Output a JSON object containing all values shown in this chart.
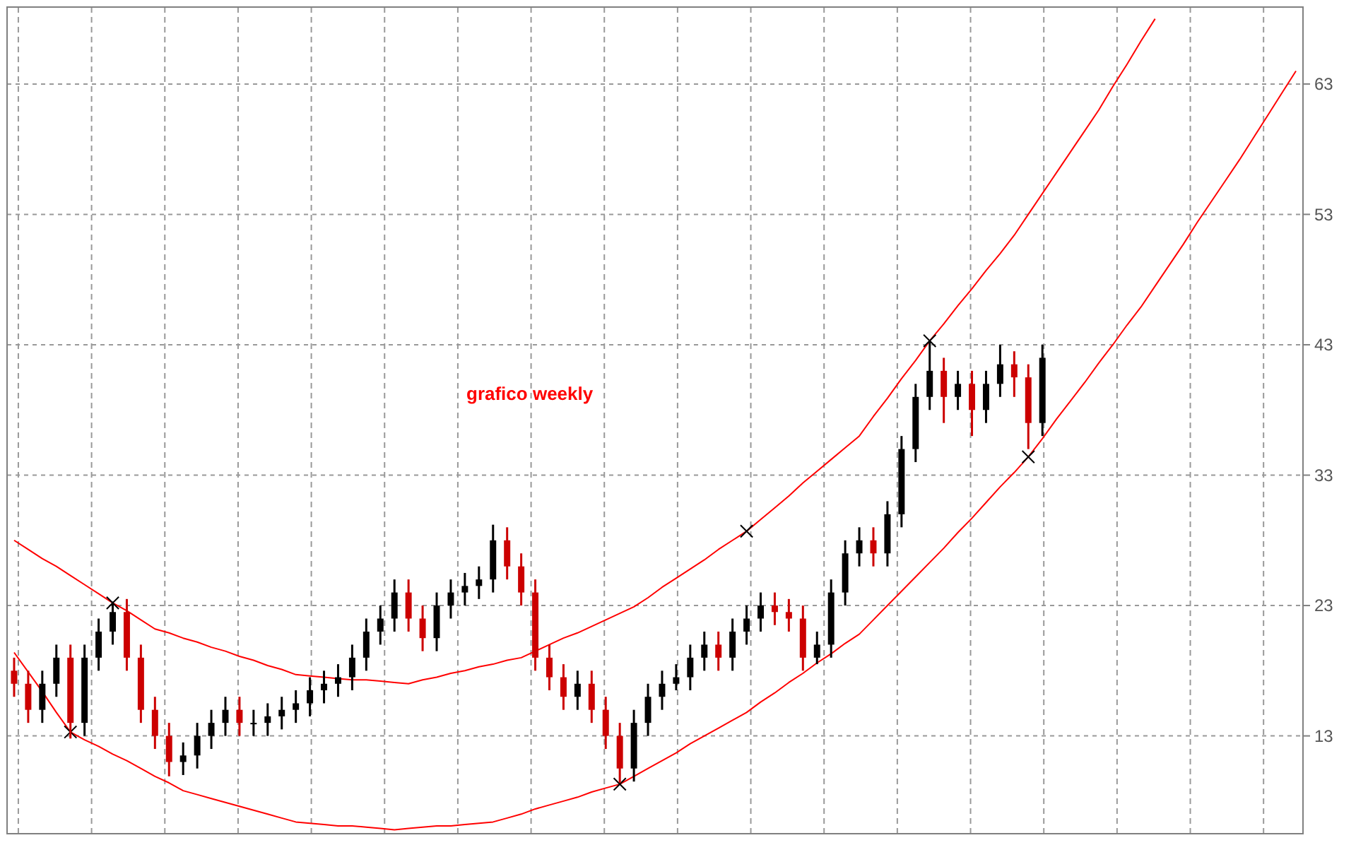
{
  "chart_data": {
    "type": "candlestick",
    "annotations": [
      "grafico weekly"
    ],
    "categories": [
      null,
      null,
      null,
      null,
      null,
      null,
      null,
      null,
      null,
      null,
      null,
      null,
      null,
      null,
      null,
      null,
      null,
      null,
      null,
      null,
      null,
      null,
      null,
      null,
      null,
      null,
      null,
      null,
      null,
      null,
      null,
      null,
      null,
      null,
      null,
      null,
      null,
      null,
      null,
      null,
      null,
      null,
      null,
      null,
      null,
      null,
      null,
      null,
      null,
      null,
      null,
      null,
      null,
      null,
      null,
      null,
      null,
      null,
      null,
      null,
      null,
      null,
      null,
      null,
      null,
      null,
      null,
      null,
      null,
      null,
      null,
      null,
      null,
      null,
      null,
      null,
      null,
      null,
      null,
      null,
      null,
      null,
      null,
      null,
      null,
      null,
      null,
      null,
      null,
      null,
      null,
      null
    ],
    "ohlc": [
      [
        18,
        19,
        16,
        17
      ],
      [
        17,
        18,
        14,
        15
      ],
      [
        15,
        18,
        14,
        17
      ],
      [
        17,
        20,
        16,
        19
      ],
      [
        19,
        20,
        12.8,
        14
      ],
      [
        14,
        20,
        13,
        19
      ],
      [
        19,
        22,
        18,
        21
      ],
      [
        21,
        23.3,
        20,
        22.5
      ],
      [
        22.5,
        23.5,
        18,
        19
      ],
      [
        19,
        20,
        14,
        15
      ],
      [
        15,
        16,
        12,
        13
      ],
      [
        13,
        14,
        9.9,
        11
      ],
      [
        11,
        12.5,
        10,
        11.5
      ],
      [
        11.5,
        14,
        10.5,
        13
      ],
      [
        13,
        15,
        12,
        14
      ],
      [
        14,
        16,
        13,
        15
      ],
      [
        15,
        16,
        13,
        14
      ],
      [
        14,
        15,
        13,
        14
      ],
      [
        14,
        15.5,
        13,
        14.5
      ],
      [
        14.5,
        16,
        13.5,
        15
      ],
      [
        15,
        16.5,
        14,
        15.5
      ],
      [
        15.5,
        17.5,
        14.5,
        16.5
      ],
      [
        16.5,
        18,
        15.5,
        17
      ],
      [
        17,
        18.5,
        16,
        17.5
      ],
      [
        17.5,
        20,
        16.5,
        19
      ],
      [
        19,
        22,
        18,
        21
      ],
      [
        21,
        23,
        20,
        22
      ],
      [
        22,
        25,
        21,
        24
      ],
      [
        24,
        25,
        21,
        22
      ],
      [
        22,
        23,
        19.5,
        20.5
      ],
      [
        20.5,
        24,
        19.5,
        23
      ],
      [
        23,
        25,
        22,
        24
      ],
      [
        24,
        25.5,
        23,
        24.5
      ],
      [
        24.5,
        26,
        23.5,
        25
      ],
      [
        25,
        29.2,
        24,
        28
      ],
      [
        28,
        29,
        25,
        26
      ],
      [
        26,
        27,
        23,
        24
      ],
      [
        24,
        25,
        18,
        19
      ],
      [
        19,
        20,
        16.5,
        17.5
      ],
      [
        17.5,
        18.5,
        15,
        16
      ],
      [
        16,
        18,
        15,
        17
      ],
      [
        17,
        18,
        14,
        15
      ],
      [
        15,
        16,
        12,
        13
      ],
      [
        13,
        14,
        9.4,
        10.5
      ],
      [
        10.5,
        15,
        9.5,
        14
      ],
      [
        14,
        17,
        13,
        16
      ],
      [
        16,
        18,
        15,
        17
      ],
      [
        17,
        18.5,
        16.5,
        17.5
      ],
      [
        17.5,
        20,
        16.5,
        19
      ],
      [
        19,
        21,
        18,
        20
      ],
      [
        20,
        21,
        18,
        19
      ],
      [
        19,
        22,
        18,
        21
      ],
      [
        21,
        23,
        20,
        22
      ],
      [
        22,
        24,
        21,
        23
      ],
      [
        23,
        24,
        21.5,
        22.5
      ],
      [
        22.5,
        23.5,
        21,
        22
      ],
      [
        22,
        23,
        18,
        19
      ],
      [
        19,
        21,
        18.5,
        20
      ],
      [
        20,
        25,
        19,
        24
      ],
      [
        24,
        28,
        23,
        27
      ],
      [
        27,
        29,
        26,
        28
      ],
      [
        28,
        29,
        26,
        27
      ],
      [
        27,
        31,
        26,
        30
      ],
      [
        30,
        36,
        29,
        35
      ],
      [
        35,
        40,
        34,
        39
      ],
      [
        39,
        43.3,
        38,
        41
      ],
      [
        41,
        42,
        37,
        39
      ],
      [
        39,
        41,
        38,
        40
      ],
      [
        40,
        41,
        36,
        38
      ],
      [
        38,
        41,
        37,
        40
      ],
      [
        40,
        43,
        39,
        41.5
      ],
      [
        41.5,
        42.5,
        39,
        40.5
      ],
      [
        40.5,
        41.5,
        35,
        37
      ],
      [
        37,
        43,
        36,
        42
      ],
      null,
      null,
      null,
      null,
      null,
      null,
      null,
      null,
      null,
      null,
      null,
      null,
      null,
      null,
      null,
      null,
      null,
      null
    ],
    "series": [
      {
        "type": "line",
        "color": "#ff0000",
        "values": [
          28.0,
          27.3,
          26.6,
          26.0,
          25.3,
          24.6,
          23.9,
          23.2,
          22.6,
          21.9,
          21.2,
          20.9,
          20.5,
          20.2,
          19.8,
          19.5,
          19.1,
          18.8,
          18.4,
          18.1,
          17.7,
          17.6,
          17.5,
          17.4,
          17.3,
          17.3,
          17.2,
          17.1,
          17.0,
          17.3,
          17.5,
          17.8,
          18.0,
          18.3,
          18.5,
          18.8,
          19.0,
          19.5,
          20.0,
          20.5,
          20.9,
          21.4,
          21.9,
          22.4,
          22.9,
          23.6,
          24.4,
          25.1,
          25.8,
          26.5,
          27.3,
          28.0,
          28.7,
          29.6,
          30.5,
          31.4,
          32.4,
          33.3,
          34.2,
          35.1,
          36.0,
          37.5,
          38.9,
          40.4,
          41.8,
          43.3,
          44.6,
          46.0,
          47.3,
          48.7,
          50.0,
          51.4,
          53.0,
          54.6,
          56.2,
          57.8,
          59.4,
          61.0,
          62.8,
          64.5,
          66.3,
          68.0,
          null,
          null,
          null,
          null,
          null,
          null,
          null,
          null,
          null,
          null
        ]
      },
      {
        "type": "line",
        "color": "#ff0000",
        "values": [
          19.4,
          17.9,
          16.4,
          14.8,
          13.3,
          12.7,
          12.2,
          11.6,
          11.1,
          10.5,
          9.9,
          9.4,
          8.8,
          8.5,
          8.2,
          7.9,
          7.6,
          7.3,
          7.0,
          6.7,
          6.4,
          6.3,
          6.2,
          6.1,
          6.1,
          6.0,
          5.9,
          5.8,
          5.9,
          6.0,
          6.1,
          6.1,
          6.2,
          6.3,
          6.4,
          6.7,
          7.0,
          7.4,
          7.7,
          8.0,
          8.3,
          8.7,
          9.0,
          9.3,
          9.9,
          10.5,
          11.1,
          11.7,
          12.4,
          13.0,
          13.6,
          14.2,
          14.8,
          15.6,
          16.3,
          17.1,
          17.8,
          18.6,
          19.3,
          20.1,
          20.8,
          21.9,
          23.0,
          24.1,
          25.2,
          26.3,
          27.4,
          28.6,
          29.7,
          30.9,
          32.1,
          33.2,
          34.4,
          35.8,
          37.3,
          38.7,
          40.1,
          41.6,
          43.0,
          44.5,
          45.9,
          47.5,
          49.1,
          50.7,
          52.4,
          54.0,
          55.6,
          57.2,
          58.9,
          60.6,
          62.3,
          64.0
        ]
      },
      {
        "type": "scatter",
        "color": "#000000",
        "marker": "cross",
        "values": [
          null,
          null,
          null,
          null,
          13.3,
          null,
          null,
          23.2,
          null,
          null,
          null,
          null,
          null,
          null,
          null,
          null,
          null,
          null,
          null,
          null,
          null,
          null,
          null,
          null,
          null,
          null,
          null,
          null,
          null,
          null,
          null,
          null,
          null,
          null,
          null,
          null,
          null,
          null,
          null,
          null,
          null,
          null,
          null,
          9.3,
          null,
          null,
          null,
          null,
          null,
          null,
          null,
          null,
          28.7,
          null,
          null,
          null,
          null,
          null,
          null,
          null,
          null,
          null,
          null,
          null,
          null,
          43.3,
          null,
          null,
          null,
          null,
          null,
          null,
          34.4,
          null,
          null,
          null,
          null,
          null,
          null,
          null,
          null,
          null,
          null,
          null,
          null,
          null,
          null,
          null,
          null,
          null,
          null,
          null
        ]
      }
    ],
    "ylim": [
      5.5,
      68.9
    ],
    "yticks": [
      13,
      23,
      33,
      43,
      53,
      63
    ],
    "grid": true,
    "tick_labels": "y"
  }
}
